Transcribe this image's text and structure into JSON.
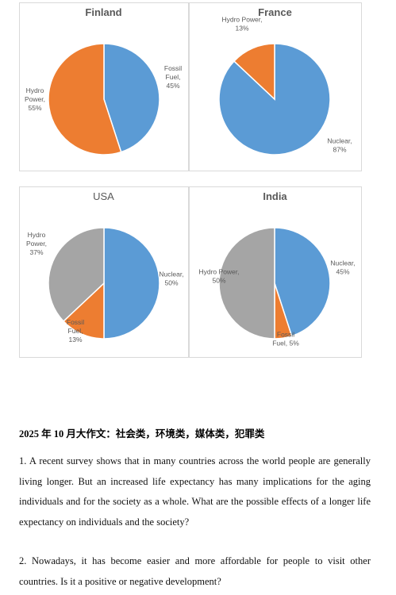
{
  "chart_data": [
    {
      "type": "pie",
      "title": "Finland",
      "values": [
        45,
        55
      ],
      "value_labels": [
        "Fossil Fuel, 45%",
        "Hydro Power, 55%"
      ],
      "colors": [
        "#5b9bd5",
        "#ed7d31"
      ]
    },
    {
      "type": "pie",
      "title": "France",
      "values": [
        87,
        13
      ],
      "value_labels": [
        "Nuclear, 87%",
        "Hydro Power, 13%"
      ],
      "colors": [
        "#5b9bd5",
        "#ed7d31"
      ]
    },
    {
      "type": "pie",
      "title": "USA",
      "values": [
        50,
        13,
        37
      ],
      "value_labels": [
        "Nuclear, 50%",
        "Fossil Fuel, 13%",
        "Hydro Power, 37%"
      ],
      "colors": [
        "#5b9bd5",
        "#ed7d31",
        "#a5a5a5"
      ]
    },
    {
      "type": "pie",
      "title": "India",
      "values": [
        45,
        5,
        50
      ],
      "value_labels": [
        "Nuclear, 45%",
        "Fossil Fuel, 5%",
        "Hydro Power, 50%"
      ],
      "colors": [
        "#5b9bd5",
        "#ed7d31",
        "#a5a5a5"
      ]
    }
  ],
  "document": {
    "heading": "2025 年 10 月大作文：社会类，环境类，媒体类，犯罪类",
    "paragraphs": [
      "1. A recent survey shows that in many countries across the world people are generally living longer. But an increased life expectancy has many implications for the aging individuals and for the society as a whole. What are the possible effects of a longer life expectancy on individuals and the society?",
      "2. Nowadays, it has become easier and more affordable for people to visit other countries. Is it a positive or negative development?"
    ]
  }
}
